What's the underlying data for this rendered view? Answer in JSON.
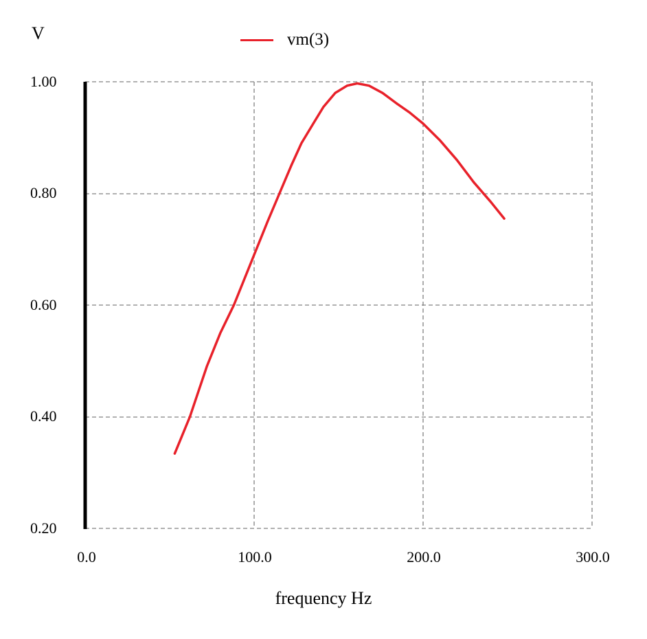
{
  "chart_data": {
    "type": "line",
    "title": "",
    "xlabel": "frequency Hz",
    "ylabel": "V",
    "xlim": [
      0,
      300
    ],
    "ylim": [
      0.2,
      1.0
    ],
    "grid": true,
    "legend_position": "top",
    "x_ticks": [
      "0.0",
      "100.0",
      "200.0",
      "300.0"
    ],
    "y_ticks": [
      "0.20",
      "0.40",
      "0.60",
      "0.80",
      "1.00"
    ],
    "series": [
      {
        "name": "vm(3)",
        "color": "#e8212a",
        "x": [
          53,
          62,
          72,
          80,
          88,
          100,
          108,
          115,
          122,
          128,
          135,
          141,
          148,
          155,
          161,
          168,
          176,
          184,
          192,
          200,
          210,
          220,
          230,
          240,
          248
        ],
        "values": [
          0.334,
          0.4,
          0.49,
          0.55,
          0.6,
          0.69,
          0.75,
          0.8,
          0.85,
          0.89,
          0.925,
          0.955,
          0.98,
          0.993,
          0.997,
          0.993,
          0.98,
          0.962,
          0.945,
          0.925,
          0.895,
          0.86,
          0.82,
          0.785,
          0.755
        ]
      }
    ]
  },
  "labels": {
    "ylabel": "V",
    "xlabel": "frequency Hz",
    "legend": "vm(3)",
    "yticks": [
      "1.00",
      "0.80",
      "0.60",
      "0.40",
      "0.20"
    ],
    "xticks": [
      "0.0",
      "100.0",
      "200.0",
      "300.0"
    ]
  }
}
